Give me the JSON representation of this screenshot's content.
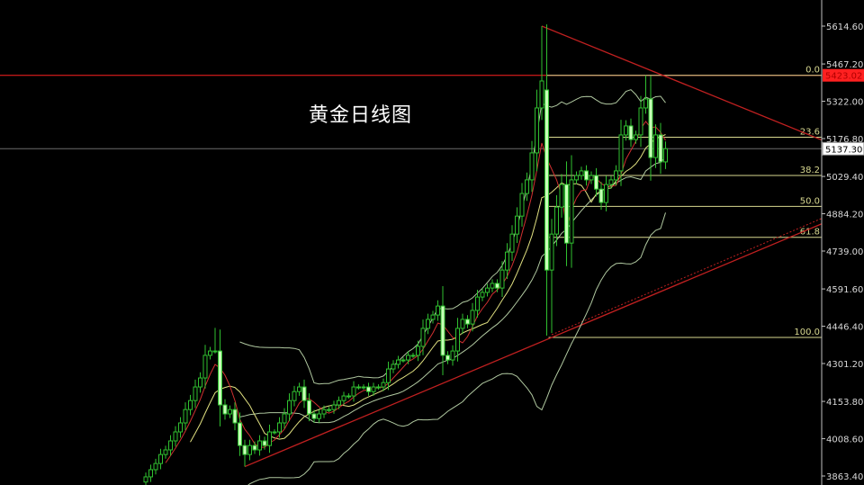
{
  "title": "黄金日线图",
  "chart_data": {
    "type": "candlestick",
    "title": "黄金日线图",
    "ylim": [
      3863.4,
      5614.6
    ],
    "y_ticks": [
      "5614.60",
      "5467.20",
      "5322.00",
      "5176.80",
      "5029.40",
      "4884.20",
      "4739.00",
      "4591.60",
      "4446.40",
      "4301.20",
      "4153.80",
      "4008.60",
      "3863.40"
    ],
    "closes": [
      3860,
      3888,
      3912,
      3947,
      3965,
      4000,
      4035,
      4070,
      4122,
      4157,
      4210,
      4245,
      4333,
      4350,
      4350,
      4140,
      4105,
      4122,
      4070,
      3982,
      3947,
      3982,
      3965,
      4000,
      3982,
      4035,
      4035,
      4070,
      4105,
      4157,
      4192,
      4210,
      4157,
      4105,
      4087,
      4105,
      4122,
      4122,
      4140,
      4157,
      4175,
      4175,
      4210,
      4210,
      4210,
      4192,
      4210,
      4210,
      4227,
      4280,
      4298,
      4315,
      4315,
      4333,
      4333,
      4368,
      4438,
      4473,
      4490,
      4525,
      4333,
      4315,
      4350,
      4438,
      4473,
      4455,
      4508,
      4560,
      4578,
      4595,
      4613,
      4595,
      4665,
      4735,
      4805,
      4875,
      4963,
      5016,
      5121,
      5296,
      5401,
      4665,
      4805,
      4910,
      4998,
      4770,
      5016,
      5033,
      5051,
      5016,
      5033,
      4980,
      4928,
      4998,
      5016,
      5051,
      5191,
      5226,
      5173,
      5191,
      5296,
      5331,
      5103,
      5191,
      5086,
      5137.3
    ],
    "extremes": [
      {
        "index": 14,
        "high": 4440
      },
      {
        "index": 20,
        "low": 3900
      },
      {
        "index": 80,
        "high": 5614.6
      },
      {
        "index": 81,
        "open": 5366
      },
      {
        "index": 82,
        "low": 4420
      },
      {
        "index": 101,
        "high": 5423
      }
    ],
    "indicators": [
      "MA",
      "MA",
      "Bollinger Bands"
    ],
    "horizontal_lines": [
      {
        "price": 5423.02,
        "label": "5423.02",
        "color": "#ff2020"
      },
      {
        "price": 5137.3,
        "label": "5137.30",
        "color": "#888888"
      }
    ],
    "fibonacci": {
      "high": 5423.02,
      "low": 4402.7,
      "levels": [
        {
          "ratio": 0.0,
          "label": "0.0"
        },
        {
          "ratio": 0.236,
          "label": "23.6"
        },
        {
          "ratio": 0.382,
          "label": "38.2"
        },
        {
          "ratio": 0.5,
          "label": "50.0"
        },
        {
          "ratio": 0.618,
          "label": "61.8"
        },
        {
          "ratio": 1.0,
          "label": "100.0"
        }
      ],
      "color": "#d8d890"
    },
    "trendlines": [
      {
        "name": "resistance",
        "from": {
          "index": 80,
          "price": 5614.6
        },
        "to": {
          "index": 101,
          "price": 5450
        },
        "color": "#c02020"
      },
      {
        "name": "support",
        "from": {
          "index": 20,
          "price": 3900
        },
        "to": {
          "index": 82,
          "price": 4402.7
        },
        "color": "#c02020"
      }
    ],
    "colors": {
      "background": "#000000",
      "bull": "#30c030",
      "bear_fill": "#c8ffb8",
      "ma_fast": "#d03030",
      "ma_slow": "#e0e080",
      "bands": "#b0c8a0",
      "axis": "#c0c0c0"
    }
  }
}
